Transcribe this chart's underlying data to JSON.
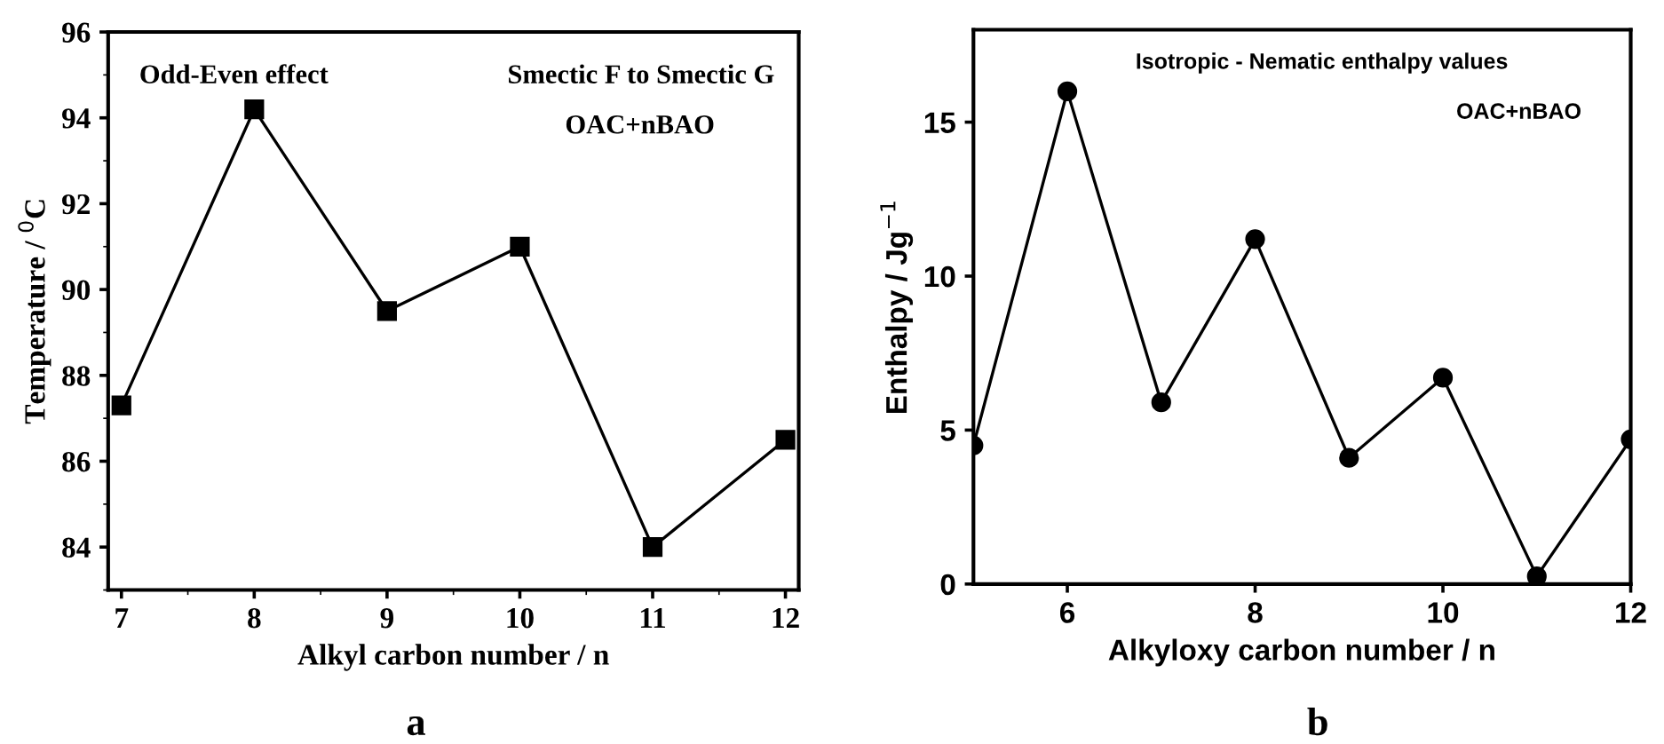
{
  "chart_data": [
    {
      "type": "line",
      "xlabel": "Alkyl carbon number / n",
      "ylabel": "Temperature / $^{0}$C",
      "x": [
        7,
        8,
        9,
        10,
        11,
        12
      ],
      "series": [
        {
          "color": "#000000",
          "values": [
            87.3,
            94.2,
            89.5,
            91.0,
            84.0,
            86.5
          ]
        }
      ],
      "xlim": [
        6.9,
        12.1
      ],
      "xticks": [
        7,
        8,
        9,
        10,
        11,
        12
      ],
      "ylim": [
        83,
        96
      ],
      "yticks": [
        84,
        86,
        88,
        90,
        92,
        94,
        96
      ],
      "marker": "square",
      "line_style": "solid",
      "grid": false,
      "legend": false,
      "annotations": [
        "Odd-Even effect",
        "Smectic F to Smectic G",
        "OAC+nBAO",
        "a"
      ]
    },
    {
      "type": "line",
      "xlabel": "Alkyloxy carbon number / n",
      "ylabel": "Enthalpy / Jg$^{−1}$",
      "x": [
        5,
        6,
        7,
        8,
        9,
        10,
        11,
        12
      ],
      "series": [
        {
          "color": "#000000",
          "values": [
            4.5,
            16.0,
            5.9,
            11.2,
            4.1,
            6.7,
            0.25,
            4.7
          ]
        }
      ],
      "xlim": [
        5,
        12
      ],
      "xticks": [
        6,
        8,
        10,
        12
      ],
      "ylim": [
        0,
        18
      ],
      "yticks": [
        0,
        5,
        10,
        15
      ],
      "marker": "circle",
      "line_style": "solid",
      "grid": false,
      "legend": false,
      "annotations": [
        "Isotropic - Nematic enthalpy values",
        "OAC+nBAO",
        "b"
      ]
    }
  ]
}
